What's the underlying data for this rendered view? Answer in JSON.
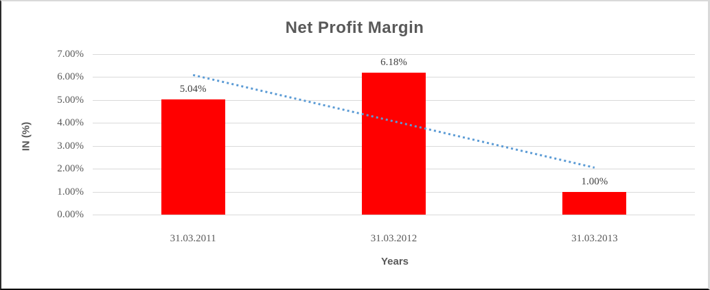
{
  "chart_data": {
    "type": "bar",
    "title": "Net Profit Margin",
    "categories": [
      "31.03.2011",
      "31.03.2012",
      "31.03.2013"
    ],
    "series": [
      {
        "name": "Net Profit Margin",
        "values": [
          5.04,
          6.18,
          1.0
        ]
      }
    ],
    "data_labels": [
      "5.04%",
      "6.18%",
      "1.00%"
    ],
    "y_ticks": [
      "7.00%",
      "6.00%",
      "5.00%",
      "4.00%",
      "3.00%",
      "2.00%",
      "1.00%",
      "0.00%"
    ],
    "ylim": [
      0,
      7
    ],
    "xlabel": "Years",
    "ylabel": "IN (%)",
    "grid": true,
    "legend": "none",
    "bar_color": "#ff0000",
    "gridline_color": "#d9d9d9",
    "trendline": {
      "type": "linear",
      "style": "dotted",
      "color": "#5b9bd5",
      "start_value": 6.09,
      "end_value": 2.05
    }
  }
}
